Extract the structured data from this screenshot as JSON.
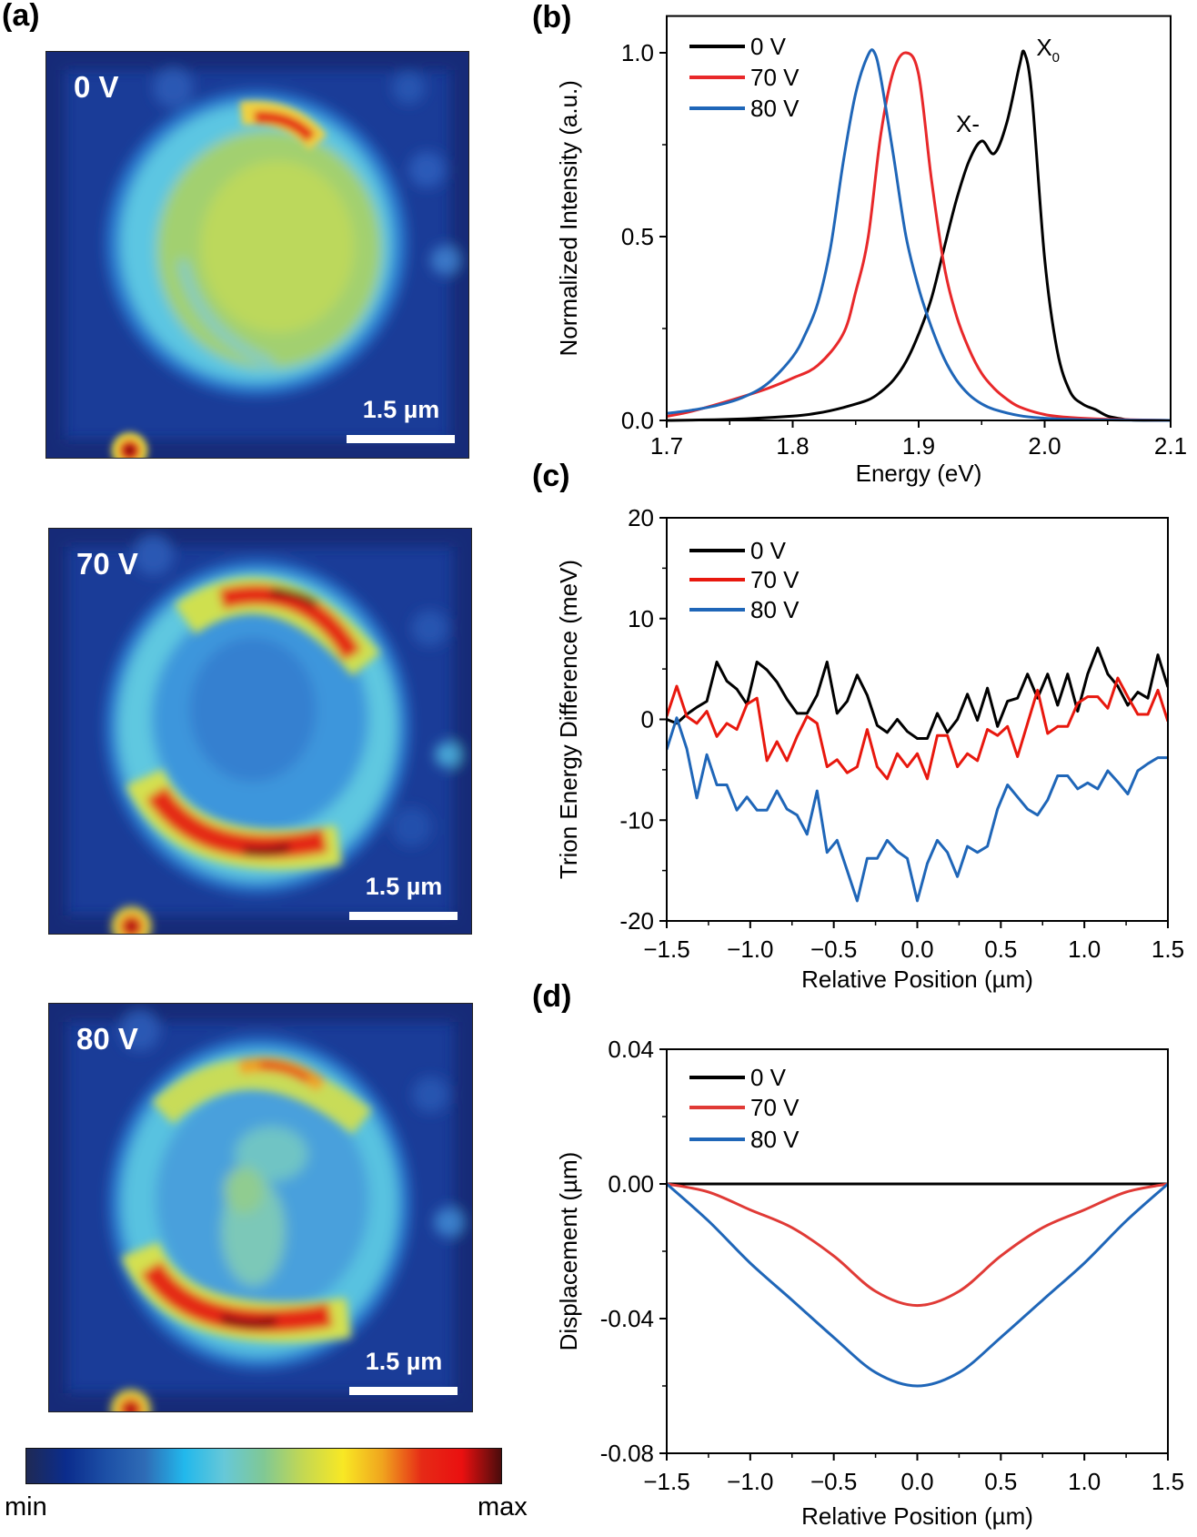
{
  "panel_labels": {
    "a": "(a)",
    "b": "(b)",
    "c": "(c)",
    "d": "(d)"
  },
  "maps": [
    {
      "voltage": "0 V",
      "scale_bar": "1.5 µm"
    },
    {
      "voltage": "70 V",
      "scale_bar": "1.5 µm"
    },
    {
      "voltage": "80 V",
      "scale_bar": "1.5 µm"
    }
  ],
  "colorbar": {
    "min_label": "min",
    "max_label": "max",
    "colormap": [
      "#1f2a55",
      "#0b2c8c",
      "#1c4fa6",
      "#2f6cb6",
      "#22b8ec",
      "#66c8d8",
      "#80c894",
      "#c4d852",
      "#f8e824",
      "#f0a41e",
      "#e62a16",
      "#ea1010",
      "#4a0c0c"
    ]
  },
  "chart_data": [
    {
      "type": "line",
      "panel": "b",
      "xlabel": "Energy (eV)",
      "ylabel": "Normalized Intensity (a.u.)",
      "xlim": [
        1.7,
        2.1
      ],
      "ylim": [
        0,
        1.1
      ],
      "xticks": [
        {
          "v": 1.7,
          "label": "1.7"
        },
        {
          "v": 1.8,
          "label": "1.8"
        },
        {
          "v": 1.9,
          "label": "1.9"
        },
        {
          "v": 2.0,
          "label": "2.0"
        },
        {
          "v": 2.1,
          "label": "2.1"
        }
      ],
      "xminor": [
        1.75,
        1.85,
        1.95,
        2.05
      ],
      "yticks": [
        {
          "v": 0,
          "label": "0.0"
        },
        {
          "v": 0.5,
          "label": "0.5"
        },
        {
          "v": 1.0,
          "label": "1.0"
        }
      ],
      "yminor": [
        0.25,
        0.75
      ],
      "smooth": true,
      "legend": "top-left",
      "series": [
        {
          "name": "0 V",
          "color": "#000000",
          "x": [
            1.7,
            1.75,
            1.8,
            1.82,
            1.84,
            1.86,
            1.87,
            1.88,
            1.89,
            1.9,
            1.91,
            1.92,
            1.93,
            1.94,
            1.95,
            1.96,
            1.97,
            1.98,
            1.984,
            1.99,
            2.0,
            2.01,
            2.02,
            2.03,
            2.04,
            2.05,
            2.06,
            2.07,
            2.1
          ],
          "y": [
            0,
            0.003,
            0.012,
            0.02,
            0.035,
            0.056,
            0.078,
            0.11,
            0.16,
            0.235,
            0.33,
            0.466,
            0.6,
            0.706,
            0.76,
            0.726,
            0.81,
            0.965,
            1.0,
            0.88,
            0.44,
            0.19,
            0.08,
            0.045,
            0.03,
            0.012,
            0.005,
            0.001,
            0
          ]
        },
        {
          "name": "70 V",
          "color": "#e8282a",
          "x": [
            1.7,
            1.72,
            1.75,
            1.78,
            1.8,
            1.82,
            1.84,
            1.85,
            1.86,
            1.87,
            1.88,
            1.89,
            1.9,
            1.91,
            1.92,
            1.93,
            1.94,
            1.95,
            1.96,
            1.97,
            1.98,
            2.0,
            2.02,
            2.05,
            2.1
          ],
          "y": [
            0.011,
            0.025,
            0.054,
            0.087,
            0.115,
            0.15,
            0.235,
            0.35,
            0.5,
            0.78,
            0.95,
            1.0,
            0.94,
            0.66,
            0.425,
            0.285,
            0.194,
            0.128,
            0.087,
            0.058,
            0.037,
            0.016,
            0.008,
            0.003,
            0
          ]
        },
        {
          "name": "80 V",
          "color": "#1f66b8",
          "x": [
            1.7,
            1.72,
            1.74,
            1.76,
            1.78,
            1.8,
            1.81,
            1.82,
            1.83,
            1.84,
            1.85,
            1.86,
            1.865,
            1.87,
            1.88,
            1.89,
            1.9,
            1.91,
            1.92,
            1.93,
            1.94,
            1.95,
            1.96,
            1.98,
            2.0,
            2.03,
            2.06,
            2.1
          ],
          "y": [
            0.019,
            0.028,
            0.041,
            0.062,
            0.1,
            0.173,
            0.235,
            0.32,
            0.47,
            0.7,
            0.89,
            0.995,
            1.0,
            0.93,
            0.72,
            0.5,
            0.36,
            0.255,
            0.17,
            0.11,
            0.07,
            0.045,
            0.03,
            0.013,
            0.006,
            0.002,
            0.001,
            0
          ]
        }
      ],
      "annotations": [
        {
          "text": "X-",
          "sub": "",
          "x": 1.952,
          "y": 0.76
        },
        {
          "text": "X",
          "sub": "0",
          "x": 1.984,
          "y": 1.0
        }
      ]
    },
    {
      "type": "line",
      "panel": "c",
      "xlabel": "Relative Position (µm)",
      "ylabel": "Trion Energy Difference (meV)",
      "xlim": [
        -1.5,
        1.5
      ],
      "ylim": [
        -20,
        20
      ],
      "xticks": [
        {
          "v": -1.5,
          "label": "−1.5"
        },
        {
          "v": -1.0,
          "label": "−1.0"
        },
        {
          "v": -0.5,
          "label": "−0.5"
        },
        {
          "v": 0,
          "label": "0.0"
        },
        {
          "v": 0.5,
          "label": "0.5"
        },
        {
          "v": 1.0,
          "label": "1.0"
        },
        {
          "v": 1.5,
          "label": "1.5"
        }
      ],
      "xminor": [
        -1.25,
        -0.75,
        -0.25,
        0.25,
        0.75,
        1.25
      ],
      "yticks": [
        {
          "v": -20,
          "label": "-20"
        },
        {
          "v": -10,
          "label": "-10"
        },
        {
          "v": 0,
          "label": "0"
        },
        {
          "v": 10,
          "label": "10"
        },
        {
          "v": 20,
          "label": "20"
        }
      ],
      "yminor": [
        -15,
        -5,
        5,
        15
      ],
      "smooth": false,
      "legend": "top-left",
      "x": [
        -1.5,
        -1.44,
        -1.38,
        -1.32,
        -1.26,
        -1.2,
        -1.14,
        -1.08,
        -1.02,
        -0.96,
        -0.9,
        -0.84,
        -0.78,
        -0.72,
        -0.66,
        -0.6,
        -0.54,
        -0.48,
        -0.42,
        -0.36,
        -0.3,
        -0.24,
        -0.18,
        -0.12,
        -0.06,
        0,
        0.06,
        0.12,
        0.18,
        0.24,
        0.3,
        0.36,
        0.42,
        0.48,
        0.54,
        0.6,
        0.66,
        0.72,
        0.78,
        0.84,
        0.9,
        0.96,
        1.02,
        1.08,
        1.14,
        1.2,
        1.26,
        1.32,
        1.38,
        1.44,
        1.5
      ],
      "series": [
        {
          "name": "0 V",
          "color": "#000000",
          "y": [
            0,
            -0.4,
            0.5,
            1.2,
            1.8,
            5.7,
            3.8,
            3.0,
            1.5,
            5.7,
            4.9,
            3.7,
            2.0,
            0.6,
            0.6,
            2.4,
            5.7,
            0.6,
            1.8,
            4.4,
            2.4,
            -0.6,
            -1.3,
            0,
            -1.2,
            -1.9,
            -1.9,
            0.6,
            -1.3,
            0,
            2.5,
            -0.1,
            3.1,
            -0.7,
            1.8,
            2.1,
            4.5,
            2.1,
            4.5,
            1.4,
            4.5,
            0.8,
            4.5,
            7.1,
            4.5,
            3.3,
            1.4,
            2.7,
            2.1,
            6.4,
            3.2
          ]
        },
        {
          "name": "70 V",
          "color": "#e8180e",
          "y": [
            0.3,
            3.3,
            0.3,
            -0.4,
            0.8,
            -1.7,
            -0.4,
            -1.0,
            1.5,
            2.1,
            -4.1,
            -2.2,
            -4.1,
            -1.7,
            0.3,
            -0.4,
            -4.7,
            -4.0,
            -5.3,
            -4.7,
            -1.0,
            -4.7,
            -5.9,
            -3.4,
            -4.7,
            -3.4,
            -5.9,
            -1.6,
            -1.6,
            -4.7,
            -3.4,
            -4.1,
            -1.0,
            -1.6,
            -0.7,
            -3.7,
            -0.4,
            2.9,
            -1.4,
            -0.7,
            -0.7,
            1.6,
            2.25,
            2.25,
            1.1,
            4.1,
            2.25,
            0.5,
            0.5,
            2.9,
            -0.2
          ]
        },
        {
          "name": "80 V",
          "color": "#1f66b8",
          "y": [
            -3.0,
            0.15,
            -2.9,
            -7.8,
            -3.5,
            -6.5,
            -6.5,
            -9.0,
            -7.7,
            -9.0,
            -9.0,
            -7.1,
            -8.9,
            -9.5,
            -11.4,
            -7.1,
            -13.2,
            -12.0,
            -15.0,
            -18.0,
            -13.8,
            -13.8,
            -12.0,
            -13.1,
            -13.8,
            -18.0,
            -14.3,
            -12.0,
            -13.2,
            -15.6,
            -12.6,
            -13.2,
            -12.6,
            -8.9,
            -6.5,
            -7.7,
            -8.9,
            -9.5,
            -8.0,
            -5.6,
            -5.6,
            -6.9,
            -6.3,
            -6.9,
            -5.1,
            -6.2,
            -7.4,
            -5.1,
            -4.4,
            -3.8,
            -3.8
          ]
        }
      ]
    },
    {
      "type": "line",
      "panel": "d",
      "xlabel": "Relative Position (µm)",
      "ylabel": "Displacement (µm)",
      "xlim": [
        -1.5,
        1.5
      ],
      "ylim": [
        -0.08,
        0.04
      ],
      "xticks": [
        {
          "v": -1.5,
          "label": "−1.5"
        },
        {
          "v": -1.0,
          "label": "−1.0"
        },
        {
          "v": -0.5,
          "label": "−0.5"
        },
        {
          "v": 0,
          "label": "0.0"
        },
        {
          "v": 0.5,
          "label": "0.5"
        },
        {
          "v": 1.0,
          "label": "1.0"
        },
        {
          "v": 1.5,
          "label": "1.5"
        }
      ],
      "xminor": [
        -1.25,
        -0.75,
        -0.25,
        0.25,
        0.75,
        1.25
      ],
      "yticks": [
        {
          "v": -0.08,
          "label": "-0.08"
        },
        {
          "v": -0.04,
          "label": "-0.04"
        },
        {
          "v": 0,
          "label": "0.00"
        },
        {
          "v": 0.04,
          "label": "0.04"
        }
      ],
      "yminor": [
        -0.06,
        -0.02,
        0.02
      ],
      "smooth": true,
      "legend": "top-left",
      "x": [
        -1.5,
        -1.25,
        -1.0,
        -0.75,
        -0.5,
        -0.25,
        0,
        0.25,
        0.5,
        0.75,
        1.0,
        1.25,
        1.5
      ],
      "series": [
        {
          "name": "0 V",
          "color": "#000000",
          "y": [
            0,
            0,
            0,
            0,
            0,
            0,
            0,
            0,
            0,
            0,
            0,
            0,
            0
          ]
        },
        {
          "name": "70 V",
          "color": "#e03a36",
          "y": [
            0,
            -0.0024,
            -0.0077,
            -0.013,
            -0.0214,
            -0.0319,
            -0.0361,
            -0.0319,
            -0.0214,
            -0.013,
            -0.0077,
            -0.0024,
            0
          ]
        },
        {
          "name": "80 V",
          "color": "#1f66b8",
          "y": [
            0,
            -0.011,
            -0.0235,
            -0.0345,
            -0.0456,
            -0.056,
            -0.06,
            -0.056,
            -0.0456,
            -0.0345,
            -0.0235,
            -0.011,
            0
          ]
        }
      ]
    }
  ]
}
